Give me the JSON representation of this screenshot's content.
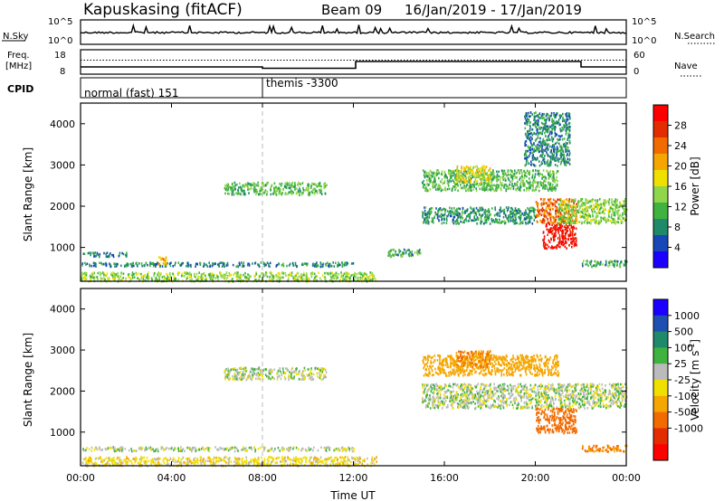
{
  "header": {
    "title": "Kapuskasing (fitACF)",
    "beam": "Beam 09",
    "dates": "16/Jan/2019 - 17/Jan/2019"
  },
  "top_panel": {
    "nsky_label": "N.Sky",
    "nsky_ticks": [
      "10^5",
      "10^0"
    ],
    "nsearch_label": "N.Search",
    "nsearch_ticks": [
      "10^5",
      "10^0"
    ],
    "freq_label_1": "Freq.",
    "freq_label_2": "[MHz]",
    "freq_ticks": [
      "18",
      "8"
    ],
    "nave_label": "Nave",
    "nave_ticks": [
      "60",
      "0"
    ],
    "cpid_label": "CPID",
    "cpid_segments": [
      {
        "start_hour": 0,
        "label": "normal (fast) 151"
      },
      {
        "start_hour": 8,
        "label": "themis -3300"
      }
    ]
  },
  "chart_data": [
    {
      "type": "heatmap",
      "name": "power",
      "xlabel": "",
      "ylabel": "Slant Range [km]",
      "x_ticks": [
        "00:00",
        "04:00",
        "08:00",
        "12:00",
        "16:00",
        "20:00",
        "00:00"
      ],
      "x_range_hours": [
        0,
        24
      ],
      "y_ticks": [
        1000,
        2000,
        3000,
        4000
      ],
      "ylim": [
        180,
        4500
      ],
      "colorbar": {
        "label": "Power [dB]",
        "ticks": [
          4,
          8,
          12,
          16,
          20,
          24,
          28
        ],
        "range": [
          0,
          32
        ],
        "colors": [
          "#1b00ff",
          "#1848b8",
          "#1f8a6a",
          "#3fb23f",
          "#8fd64a",
          "#f0e000",
          "#f5a600",
          "#f26b00",
          "#e32d00",
          "#ff0000"
        ]
      },
      "regions": [
        {
          "t": [
            0.0,
            13.0
          ],
          "r": [
            200,
            420
          ],
          "level": 14
        },
        {
          "t": [
            0.0,
            12.0
          ],
          "r": [
            560,
            660
          ],
          "level": 8
        },
        {
          "t": [
            0.1,
            2.0
          ],
          "r": [
            800,
            900
          ],
          "level": 7
        },
        {
          "t": [
            3.4,
            3.8
          ],
          "r": [
            600,
            800
          ],
          "level": 20
        },
        {
          "t": [
            6.3,
            10.8
          ],
          "r": [
            2300,
            2600
          ],
          "level": 12
        },
        {
          "t": [
            13.5,
            15.0
          ],
          "r": [
            800,
            980
          ],
          "level": 10
        },
        {
          "t": [
            15.0,
            21.0
          ],
          "r": [
            2400,
            2900
          ],
          "level": 12
        },
        {
          "t": [
            15.0,
            20.0
          ],
          "r": [
            1600,
            2000
          ],
          "level": 9
        },
        {
          "t": [
            16.5,
            18.0
          ],
          "r": [
            2600,
            3000
          ],
          "level": 18
        },
        {
          "t": [
            20.0,
            21.8
          ],
          "r": [
            1600,
            2200
          ],
          "level": 24
        },
        {
          "t": [
            20.3,
            21.8
          ],
          "r": [
            1000,
            1600
          ],
          "level": 30
        },
        {
          "t": [
            21.0,
            24.0
          ],
          "r": [
            1600,
            2200
          ],
          "level": 14
        },
        {
          "t": [
            22.0,
            24.0
          ],
          "r": [
            550,
            700
          ],
          "level": 10
        },
        {
          "t": [
            19.5,
            21.5
          ],
          "r": [
            3000,
            4300
          ],
          "level": 8
        }
      ]
    },
    {
      "type": "heatmap",
      "name": "velocity",
      "xlabel": "Time UT",
      "ylabel": "Slant Range [km]",
      "x_ticks": [
        "00:00",
        "04:00",
        "08:00",
        "12:00",
        "16:00",
        "20:00",
        "00:00"
      ],
      "x_range_hours": [
        0,
        24
      ],
      "y_ticks": [
        1000,
        2000,
        3000,
        4000
      ],
      "ylim": [
        180,
        4500
      ],
      "colorbar": {
        "label": "Velocity [m s^-1]",
        "ticks": [
          "1000",
          "500",
          "100",
          "25",
          "-25",
          "-100",
          "-500",
          "-1000"
        ],
        "colors": [
          "#1b00ff",
          "#1f4fb0",
          "#1f8a6a",
          "#3fb23f",
          "#bbbbbb",
          "#f0e000",
          "#f5a600",
          "#f26b00",
          "#e32d00",
          "#ff0000"
        ]
      },
      "regions": [
        {
          "t": [
            0.0,
            13.0
          ],
          "r": [
            200,
            420
          ],
          "level": -60
        },
        {
          "t": [
            0.0,
            12.0
          ],
          "r": [
            560,
            660
          ],
          "level": 0
        },
        {
          "t": [
            6.3,
            10.8
          ],
          "r": [
            2300,
            2600
          ],
          "level": 0
        },
        {
          "t": [
            15.0,
            21.0
          ],
          "r": [
            2400,
            2900
          ],
          "level": -200
        },
        {
          "t": [
            16.5,
            18.0
          ],
          "r": [
            2600,
            3000
          ],
          "level": -300
        },
        {
          "t": [
            15.0,
            24.0
          ],
          "r": [
            1600,
            2200
          ],
          "level": 0
        },
        {
          "t": [
            20.0,
            21.8
          ],
          "r": [
            1000,
            1600
          ],
          "level": -400
        },
        {
          "t": [
            22.0,
            24.0
          ],
          "r": [
            550,
            700
          ],
          "level": -300
        }
      ]
    }
  ]
}
